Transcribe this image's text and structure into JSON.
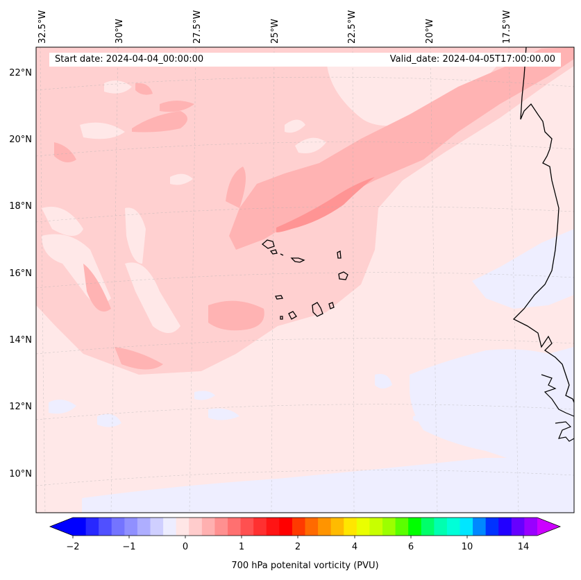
{
  "map": {
    "start_date": "Start date: 2024-04-04_00:00:00",
    "valid_date": "Valid_date: 2024-04-05T17:00:00.00",
    "lon_labels": [
      "32.5°W",
      "30°W",
      "27.5°W",
      "25°W",
      "22.5°W",
      "20°W",
      "17.5°W"
    ],
    "lat_labels": [
      "22°N",
      "20°N",
      "18°N",
      "16°N",
      "14°N",
      "12°N",
      "10°N"
    ]
  },
  "colorbar": {
    "label": "700 hPa potenital vorticity (PVU)",
    "tick_labels": [
      "−2",
      "−1",
      "0",
      "1",
      "2",
      "4",
      "6",
      "10",
      "14"
    ],
    "colors": [
      "#0000ff",
      "#2828ff",
      "#5050ff",
      "#7474ff",
      "#9090ff",
      "#aeaeff",
      "#cfcfff",
      "#ededff",
      "#ffe6e6",
      "#ffcccc",
      "#ffb0b0",
      "#ff9090",
      "#ff7070",
      "#ff5050",
      "#ff3030",
      "#ff1414",
      "#ff0000",
      "#ff3a00",
      "#ff6a00",
      "#ff9400",
      "#ffbb00",
      "#ffe600",
      "#eaff00",
      "#c8ff00",
      "#9cff00",
      "#5aff00",
      "#00ff00",
      "#00ff6a",
      "#00ffb0",
      "#00ffd8",
      "#00e6ff",
      "#0088ff",
      "#0033ff",
      "#2200ff",
      "#6600ff",
      "#9900ff"
    ],
    "under_color": "#0000ff",
    "over_color": "#cc00ff"
  },
  "colors": {
    "base_field": "#ffe8e8",
    "light_field": "#ffd0d0",
    "medium_field": "#ffb3b3",
    "strong_field": "#ff9494",
    "negative_field": "#eeeeff",
    "coastline": "#000000"
  }
}
